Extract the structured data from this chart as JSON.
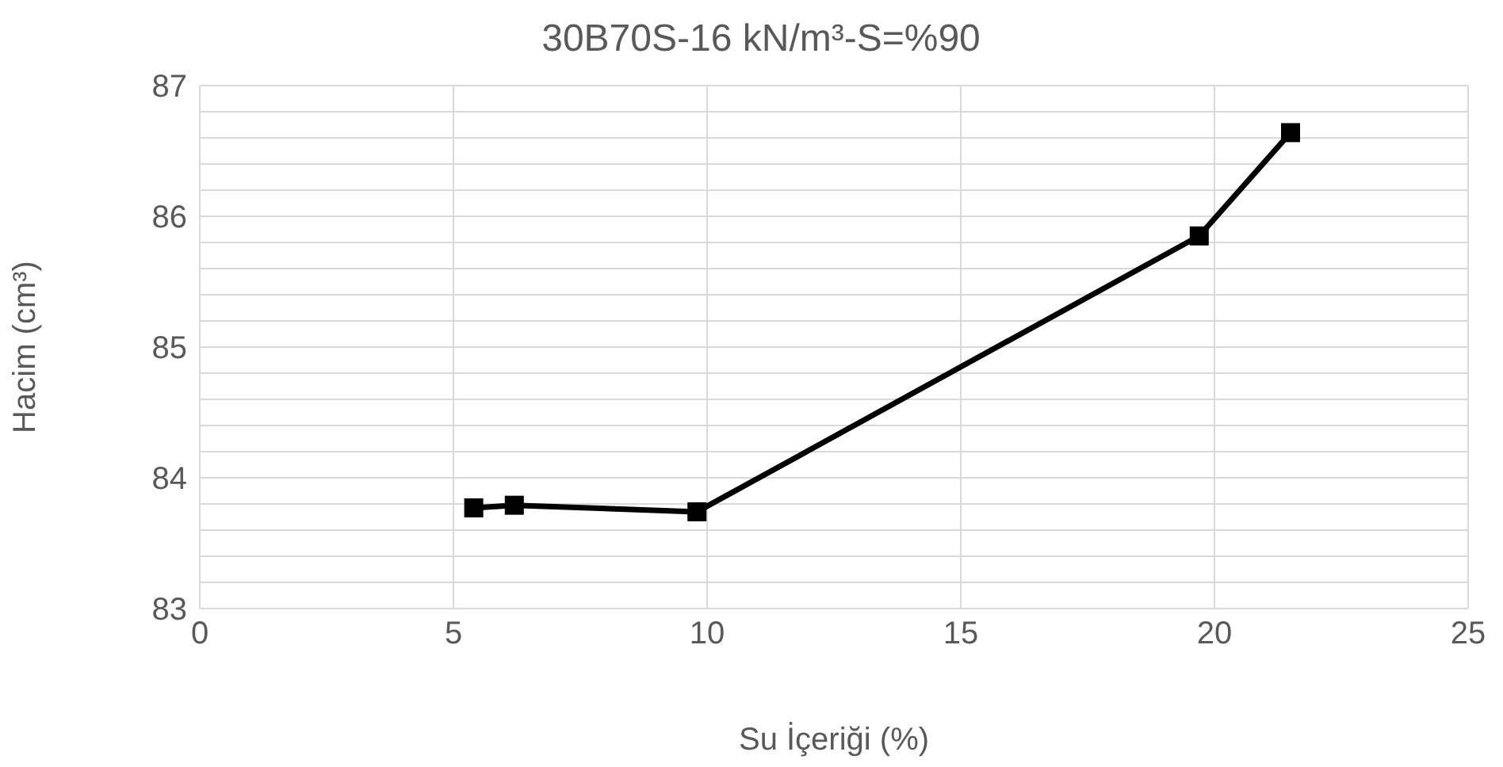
{
  "chart_data": {
    "type": "line",
    "title": "30B70S-16 kN/m³-S=%90",
    "xlabel": "Su İçeriği (%)",
    "ylabel": "Hacim (cm³)",
    "x": [
      5.4,
      6.2,
      9.8,
      19.7,
      21.5
    ],
    "series": [
      {
        "color": "#000000",
        "values": [
          83.77,
          83.79,
          83.74,
          85.85,
          86.64
        ]
      }
    ],
    "xlim": [
      0,
      25
    ],
    "xticks": [
      0,
      5,
      10,
      15,
      20,
      25
    ],
    "ylim": [
      83,
      87
    ],
    "yticks": [
      83,
      {
        "value": 83.2,
        "label": null
      },
      {
        "value": 83.4,
        "label": null
      },
      {
        "value": 83.6,
        "label": null
      },
      {
        "value": 83.8,
        "label": null
      },
      84,
      {
        "value": 84.2,
        "label": null
      },
      {
        "value": 84.4,
        "label": null
      },
      {
        "value": 84.6,
        "label": null
      },
      {
        "value": 84.8,
        "label": null
      },
      85,
      {
        "value": 85.2,
        "label": null
      },
      {
        "value": 85.4,
        "label": null
      },
      {
        "value": 85.6,
        "label": null
      },
      {
        "value": 85.8,
        "label": null
      },
      86,
      {
        "value": 86.2,
        "label": null
      },
      {
        "value": 86.4,
        "label": null
      },
      {
        "value": 86.6,
        "label": null
      },
      {
        "value": 86.8,
        "label": null
      },
      87
    ],
    "grid": true,
    "marker": "square",
    "line_style": "solid"
  }
}
